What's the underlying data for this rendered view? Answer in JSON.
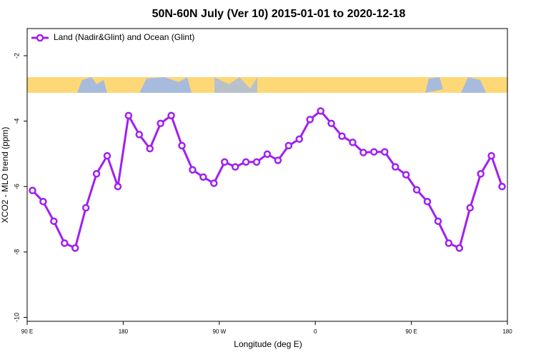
{
  "chart_data": {
    "type": "line",
    "title": "50N-60N July (Ver 10)   2015-01-01 to 2020-12-18",
    "xlabel": "Longitude (deg E)",
    "ylabel": "XCO2 - MLO trend (ppm)",
    "x": [
      95,
      105,
      115,
      125,
      135,
      145,
      155,
      165,
      175,
      185,
      195,
      205,
      215,
      225,
      235,
      245,
      255,
      265,
      275,
      285,
      295,
      305,
      315,
      325,
      335,
      345,
      355,
      365,
      375,
      385,
      395,
      405,
      415,
      425,
      435,
      445,
      455,
      465,
      475,
      485,
      495,
      505,
      515,
      525,
      535
    ],
    "series": [
      {
        "name": "Land (Nadir&Glint) and Ocean (Glint)",
        "color": "#a020f0",
        "values": [
          -6.12,
          -6.46,
          -7.06,
          -7.73,
          -7.88,
          -6.65,
          -5.61,
          -5.06,
          -6.0,
          -3.83,
          -4.41,
          -4.84,
          -4.07,
          -3.83,
          -4.75,
          -5.49,
          -5.71,
          -5.9,
          -5.25,
          -5.4,
          -5.25,
          -5.25,
          -5.01,
          -5.2,
          -4.75,
          -4.55,
          -3.95,
          -3.69,
          -4.07,
          -4.46,
          -4.65,
          -4.96,
          -4.94,
          -4.94,
          -5.4,
          -5.64,
          -6.1,
          -6.46,
          -7.06,
          -7.73,
          -7.88,
          -6.65,
          -5.61,
          -5.06,
          -6.0
        ]
      }
    ],
    "xlim": [
      90,
      540
    ],
    "ylim": [
      -10.12,
      -1.17
    ],
    "xticks": [
      {
        "value": 90,
        "label": "90 E"
      },
      {
        "value": 180,
        "label": "180"
      },
      {
        "value": 270,
        "label": "90 W"
      },
      {
        "value": 360,
        "label": "0"
      },
      {
        "value": 450,
        "label": "90 E"
      },
      {
        "value": 540,
        "label": "180"
      }
    ],
    "yticks": [
      -10,
      -8,
      -6,
      -4,
      -2
    ],
    "legend": "top-left"
  }
}
